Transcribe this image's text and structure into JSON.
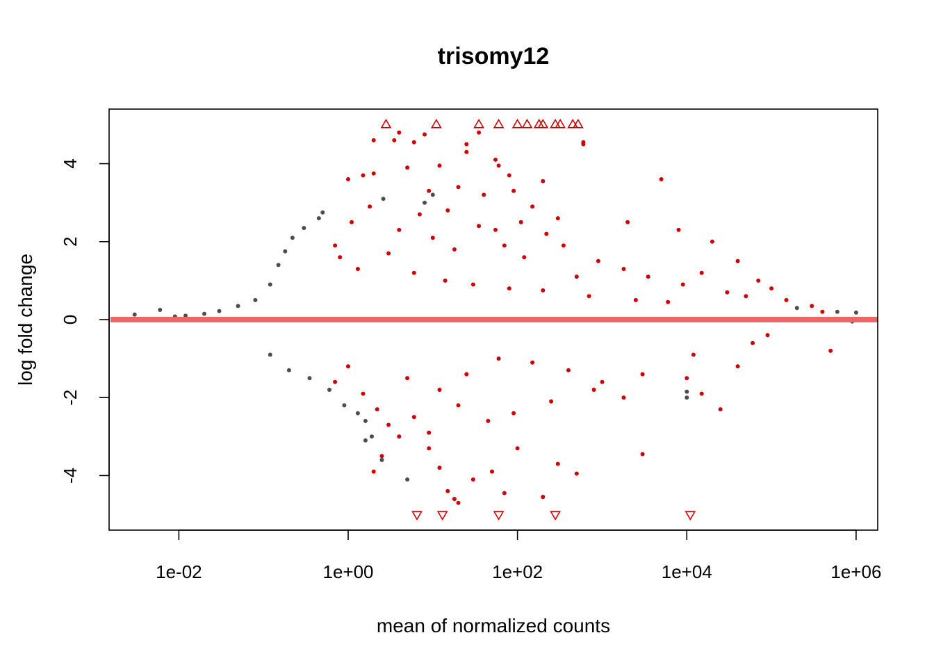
{
  "chart_data": {
    "type": "scatter",
    "title": "trisomy12",
    "xlabel": "mean of normalized counts",
    "ylabel": "log fold change",
    "x_scale": "log10",
    "xlim": [
      0.0015,
      1800000
    ],
    "ylim": [
      -5.4,
      5.4
    ],
    "x_ticks": [
      0.01,
      1,
      100,
      10000,
      1000000
    ],
    "x_tick_labels": [
      "1e-02",
      "1e+00",
      "1e+02",
      "1e+04",
      "1e+06"
    ],
    "y_ticks": [
      -4,
      -2,
      0,
      2,
      4
    ],
    "y_tick_labels": [
      "-4",
      "-2",
      "0",
      "2",
      "4"
    ],
    "grid": false,
    "reference_line": {
      "y": 0,
      "color": "#ee6666"
    },
    "colors": {
      "significant": "#cc0000",
      "not_significant": "#4d4d4d",
      "reference": "#ee6666"
    },
    "series": [
      {
        "points": [
          [
            0.003,
            0.13
          ],
          [
            0.006,
            0.25
          ],
          [
            0.009,
            0.08
          ],
          [
            0.012,
            0.1
          ],
          [
            0.02,
            0.15
          ],
          [
            0.03,
            0.22
          ],
          [
            0.05,
            0.35
          ],
          [
            0.08,
            0.5
          ],
          [
            0.12,
            0.9
          ],
          [
            0.15,
            1.4
          ],
          [
            0.18,
            1.75
          ],
          [
            0.22,
            2.1
          ],
          [
            0.3,
            2.35
          ],
          [
            0.45,
            2.6
          ],
          [
            0.5,
            2.75
          ],
          [
            0.12,
            -0.9
          ],
          [
            0.2,
            -1.3
          ],
          [
            0.35,
            -1.5
          ],
          [
            0.6,
            -1.8
          ],
          [
            0.9,
            -2.2
          ],
          [
            1.3,
            -2.4
          ],
          [
            1.6,
            -2.6
          ],
          [
            1.9,
            -3.0
          ],
          [
            1.6,
            -3.1
          ],
          [
            2.5,
            -3.6
          ],
          [
            5,
            -4.1
          ],
          [
            2.6,
            3.1
          ],
          [
            8,
            3.0
          ],
          [
            10,
            3.2
          ],
          [
            10000,
            -2.0
          ],
          [
            10000,
            -1.85
          ],
          [
            900000,
            -0.05
          ],
          [
            600000,
            0.2
          ],
          [
            1000000,
            0.18
          ],
          [
            200000,
            0.3
          ]
        ]
      },
      {
        "points": [
          [
            2.0,
            4.6
          ],
          [
            4,
            4.8
          ],
          [
            3.5,
            4.6
          ],
          [
            6,
            4.55
          ],
          [
            8,
            4.75
          ],
          [
            12,
            3.95
          ],
          [
            25,
            4.5
          ],
          [
            25,
            4.3
          ],
          [
            35,
            4.8
          ],
          [
            55,
            4.1
          ],
          [
            60,
            3.95
          ],
          [
            80,
            3.7
          ],
          [
            200,
            3.55
          ],
          [
            600,
            4.55
          ],
          [
            600,
            4.5
          ],
          [
            5000,
            3.6
          ],
          [
            1.5,
            3.7
          ],
          [
            1.0,
            3.6
          ],
          [
            2.0,
            3.75
          ],
          [
            5,
            3.9
          ],
          [
            9,
            3.3
          ],
          [
            20,
            3.4
          ],
          [
            40,
            3.2
          ],
          [
            90,
            3.3
          ],
          [
            150,
            2.9
          ],
          [
            300,
            2.6
          ],
          [
            2000,
            2.5
          ],
          [
            8000,
            2.3
          ],
          [
            20000,
            2.0
          ],
          [
            40000,
            1.5
          ],
          [
            70000,
            1.0
          ],
          [
            100000,
            0.8
          ],
          [
            150000,
            0.5
          ],
          [
            300000,
            0.35
          ],
          [
            400000,
            0.2
          ],
          [
            500000,
            -0.8
          ],
          [
            0.7,
            1.9
          ],
          [
            0.8,
            1.6
          ],
          [
            1.3,
            1.3
          ],
          [
            3,
            1.7
          ],
          [
            6,
            1.2
          ],
          [
            14,
            1.0
          ],
          [
            30,
            0.9
          ],
          [
            80,
            0.8
          ],
          [
            200,
            0.75
          ],
          [
            700,
            0.6
          ],
          [
            2500,
            0.5
          ],
          [
            6000,
            0.45
          ],
          [
            0.7,
            -1.6
          ],
          [
            1.0,
            -1.2
          ],
          [
            1.5,
            -1.9
          ],
          [
            2.2,
            -2.3
          ],
          [
            3,
            -2.7
          ],
          [
            4,
            -3.0
          ],
          [
            6,
            -2.5
          ],
          [
            9,
            -3.3
          ],
          [
            12,
            -3.8
          ],
          [
            15,
            -4.4
          ],
          [
            18,
            -4.6
          ],
          [
            20,
            -4.7
          ],
          [
            30,
            -4.1
          ],
          [
            50,
            -3.9
          ],
          [
            70,
            -4.45
          ],
          [
            100,
            -3.3
          ],
          [
            200,
            -4.55
          ],
          [
            300,
            -3.7
          ],
          [
            500,
            -3.95
          ],
          [
            3000,
            -3.45
          ],
          [
            15000,
            -1.9
          ],
          [
            25000,
            -2.3
          ],
          [
            40000,
            -1.2
          ],
          [
            10000,
            -1.5
          ],
          [
            3000,
            -1.4
          ],
          [
            1000,
            -1.6
          ],
          [
            400,
            -1.3
          ],
          [
            150,
            -1.1
          ],
          [
            60,
            -1.0
          ],
          [
            25,
            -1.4
          ],
          [
            12,
            -1.8
          ],
          [
            5,
            -1.5
          ],
          [
            2.0,
            -3.9
          ],
          [
            2.5,
            -3.5
          ],
          [
            9,
            -2.9
          ],
          [
            20,
            -2.2
          ],
          [
            45,
            -2.6
          ],
          [
            90,
            -2.4
          ],
          [
            250,
            -2.1
          ],
          [
            800,
            -1.8
          ],
          [
            1800,
            -2.0
          ],
          [
            12000,
            -0.9
          ],
          [
            60000,
            -0.6
          ],
          [
            90000,
            -0.4
          ],
          [
            4,
            2.3
          ],
          [
            10,
            2.1
          ],
          [
            18,
            1.8
          ],
          [
            35,
            2.4
          ],
          [
            70,
            1.9
          ],
          [
            120,
            1.6
          ],
          [
            350,
            1.9
          ],
          [
            900,
            1.5
          ],
          [
            1800,
            1.3
          ],
          [
            3500,
            1.1
          ],
          [
            9000,
            0.9
          ],
          [
            15000,
            1.2
          ],
          [
            30000,
            0.7
          ],
          [
            50000,
            0.6
          ],
          [
            1.1,
            2.5
          ],
          [
            1.8,
            2.9
          ],
          [
            7,
            2.7
          ],
          [
            15,
            2.8
          ],
          [
            55,
            2.3
          ],
          [
            110,
            2.5
          ],
          [
            220,
            2.2
          ],
          [
            500,
            1.1
          ]
        ]
      }
    ],
    "up_triangles": [
      {
        "x": 2.8,
        "y": 5
      },
      {
        "x": 11,
        "y": 5
      },
      {
        "x": 35,
        "y": 5
      },
      {
        "x": 60,
        "y": 5
      },
      {
        "x": 100,
        "y": 5
      },
      {
        "x": 130,
        "y": 5
      },
      {
        "x": 180,
        "y": 5
      },
      {
        "x": 200,
        "y": 5
      },
      {
        "x": 280,
        "y": 5
      },
      {
        "x": 320,
        "y": 5
      },
      {
        "x": 450,
        "y": 5
      },
      {
        "x": 520,
        "y": 5
      }
    ],
    "down_triangles": [
      {
        "x": 6.5,
        "y": -5
      },
      {
        "x": 13,
        "y": -5
      },
      {
        "x": 60,
        "y": -5
      },
      {
        "x": 280,
        "y": -5
      },
      {
        "x": 11000,
        "y": -5
      }
    ]
  }
}
